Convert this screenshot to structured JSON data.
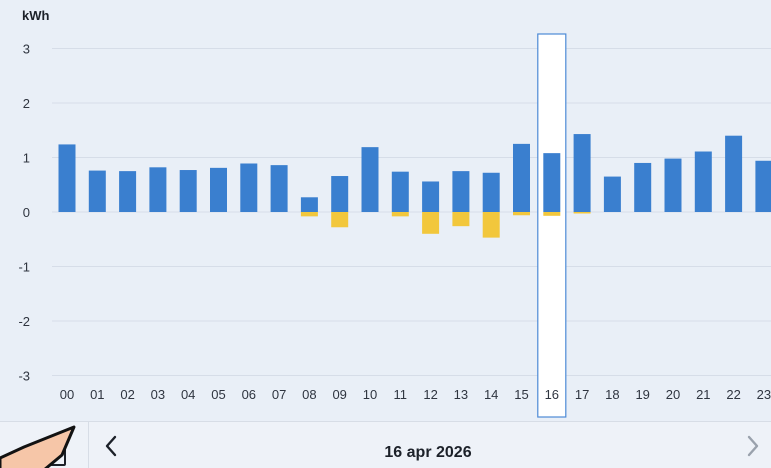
{
  "chart_data": {
    "type": "bar",
    "unit_label": "kWh",
    "categories": [
      "00",
      "01",
      "02",
      "03",
      "04",
      "05",
      "06",
      "07",
      "08",
      "09",
      "10",
      "11",
      "12",
      "13",
      "14",
      "15",
      "16",
      "17",
      "18",
      "19",
      "20",
      "21",
      "22",
      "23"
    ],
    "series": [
      {
        "values": [
          1.24,
          0.76,
          0.75,
          0.82,
          0.77,
          0.81,
          0.89,
          0.86,
          0.27,
          0.66,
          1.19,
          0.74,
          0.56,
          0.75,
          0.72,
          1.25,
          1.08,
          1.43,
          0.65,
          0.9,
          0.98,
          1.11,
          1.4,
          0.94
        ],
        "color": "#3a7fcf"
      },
      {
        "values": [
          0,
          0,
          0,
          0,
          0,
          0,
          0,
          0,
          -0.08,
          -0.28,
          0,
          -0.08,
          -0.4,
          -0.26,
          -0.47,
          -0.06,
          -0.07,
          -0.02,
          0,
          0,
          0,
          0,
          0,
          0
        ],
        "color": "#f2c73c"
      }
    ],
    "yticks": [
      3,
      2,
      1,
      0,
      -1,
      -2,
      -3
    ],
    "ylim": [
      -3.3,
      3.3
    ],
    "selected_hour": "16",
    "grid": true
  },
  "navigation": {
    "date_label": "16 apr 2026",
    "prev_icon": "chevron-left-icon",
    "next_icon": "chevron-right-icon",
    "calendar_icon": "calendar-icon"
  },
  "colors": {
    "background": "#e9eff7",
    "grid": "#d6dde8",
    "selection_border": "#4d8ad6",
    "pointer_fill": "#f6c6a8",
    "pointer_stroke": "#121212"
  }
}
